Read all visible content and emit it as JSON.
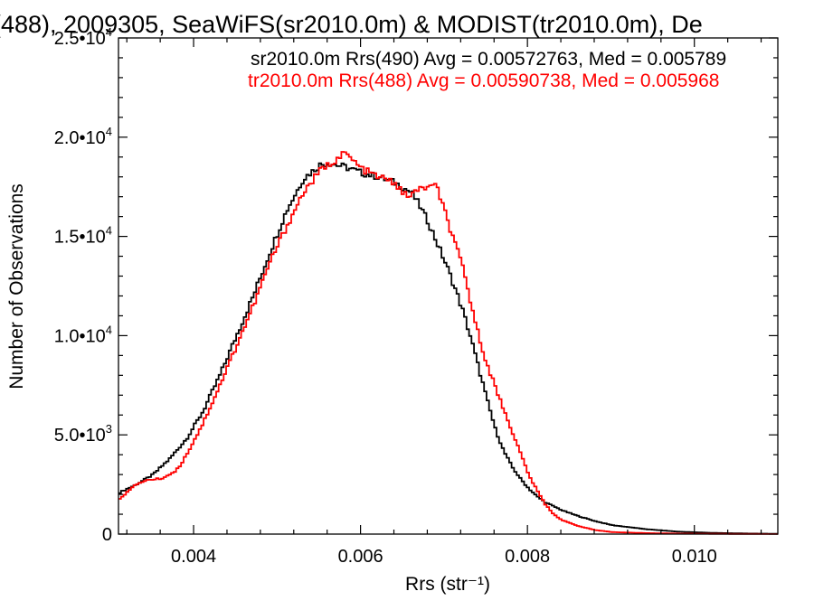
{
  "chart_data": {
    "type": "line",
    "title": "(488), 2009305, SeaWiFS(sr2010.0m) & MODIST(tr2010.0m), De",
    "xlabel": "Rrs (str⁻¹)",
    "ylabel": "Number of Observations",
    "xlim": [
      0.0031,
      0.011
    ],
    "ylim": [
      0,
      25000
    ],
    "x_ticks": [
      0.004,
      0.006,
      0.008,
      0.01
    ],
    "x_tick_labels": [
      "0.004",
      "0.006",
      "0.008",
      "0.010"
    ],
    "y_ticks": [
      0,
      5000,
      10000,
      15000,
      20000,
      25000
    ],
    "y_tick_labels": [
      {
        "mant": "0",
        "exp": ""
      },
      {
        "mant": "5.0•10",
        "exp": "3"
      },
      {
        "mant": "1.0•10",
        "exp": "4"
      },
      {
        "mant": "1.5•10",
        "exp": "4"
      },
      {
        "mant": "2.0•10",
        "exp": "4"
      },
      {
        "mant": "2.5•10",
        "exp": "4"
      }
    ],
    "grid": false,
    "legend_position": "top-right",
    "legend": [
      {
        "text": "sr2010.0m Rrs(490) Avg = 0.00572763, Med = 0.005789",
        "color": "#000000"
      },
      {
        "text": "tr2010.0m Rrs(488) Avg = 0.00590738, Med = 0.005968",
        "color": "#ff0000"
      }
    ],
    "series": [
      {
        "color": "#000000",
        "x": [
          0.0031,
          0.0033,
          0.0035,
          0.0037,
          0.0039,
          0.0041,
          0.0043,
          0.0045,
          0.0047,
          0.0049,
          0.0051,
          0.0053,
          0.0055,
          0.0056,
          0.0058,
          0.006,
          0.0062,
          0.0064,
          0.0066,
          0.0067,
          0.0068,
          0.007,
          0.0071,
          0.0072,
          0.0073,
          0.0074,
          0.0075,
          0.0076,
          0.0077,
          0.0078,
          0.0079,
          0.008,
          0.0081,
          0.0082,
          0.0084,
          0.0086,
          0.0088,
          0.009,
          0.0094,
          0.0098,
          0.0102,
          0.0106,
          0.011
        ],
        "y": [
          2100,
          2500,
          3000,
          3800,
          4800,
          6200,
          8000,
          10000,
          12000,
          14200,
          16300,
          17900,
          18600,
          18700,
          18500,
          18200,
          18000,
          17700,
          17200,
          16500,
          15700,
          13700,
          12600,
          11400,
          10000,
          8400,
          6800,
          5300,
          4200,
          3400,
          2800,
          2300,
          1900,
          1600,
          1200,
          900,
          650,
          450,
          250,
          120,
          60,
          30,
          15
        ]
      },
      {
        "color": "#ff0000",
        "x": [
          0.0031,
          0.0033,
          0.0034,
          0.0036,
          0.0037,
          0.0038,
          0.0039,
          0.0041,
          0.0043,
          0.0045,
          0.0047,
          0.0049,
          0.0051,
          0.0053,
          0.0055,
          0.0057,
          0.0058,
          0.006,
          0.0062,
          0.0064,
          0.0065,
          0.0066,
          0.0067,
          0.0068,
          0.0069,
          0.007,
          0.0071,
          0.0072,
          0.0073,
          0.0074,
          0.0075,
          0.0076,
          0.0077,
          0.0078,
          0.0079,
          0.008,
          0.0081,
          0.0082,
          0.0083,
          0.0084,
          0.0086,
          0.0088,
          0.009,
          0.0094,
          0.0098,
          0.0102,
          0.0106,
          0.011
        ],
        "y": [
          1800,
          2500,
          2700,
          2800,
          3000,
          3300,
          4000,
          5600,
          7500,
          9500,
          11500,
          13700,
          15500,
          17200,
          18300,
          18900,
          19200,
          18400,
          18000,
          17700,
          17100,
          17100,
          17400,
          17500,
          17500,
          16200,
          14800,
          13600,
          11800,
          10000,
          8600,
          7400,
          6300,
          5200,
          4100,
          3000,
          2200,
          1500,
          1000,
          700,
          400,
          200,
          100,
          50,
          25,
          15,
          8,
          5
        ]
      }
    ]
  }
}
